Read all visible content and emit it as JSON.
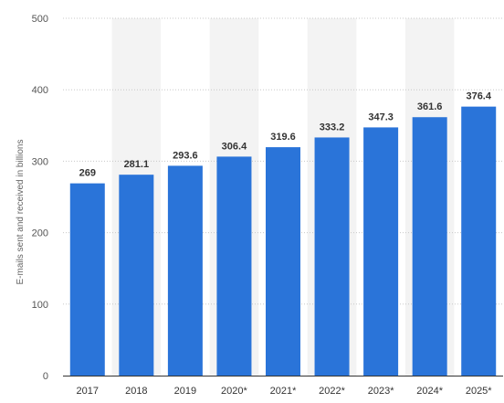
{
  "chart_data": {
    "type": "bar",
    "categories": [
      "2017",
      "2018",
      "2019",
      "2020*",
      "2021*",
      "2022*",
      "2023*",
      "2024*",
      "2025*"
    ],
    "values": [
      269,
      281.1,
      293.6,
      306.4,
      319.6,
      333.2,
      347.3,
      361.6,
      376.4
    ],
    "value_labels": [
      "269",
      "281.1",
      "293.6",
      "306.4",
      "319.6",
      "333.2",
      "347.3",
      "361.6",
      "376.4"
    ],
    "title": "",
    "xlabel": "",
    "ylabel": "E-mails sent and received in billions",
    "ylim": [
      0,
      500
    ],
    "yticks": [
      0,
      100,
      200,
      300,
      400,
      500
    ],
    "grid": true,
    "legend": "none",
    "bar_color": "#2a74d9",
    "band_color": "#f3f3f3"
  }
}
